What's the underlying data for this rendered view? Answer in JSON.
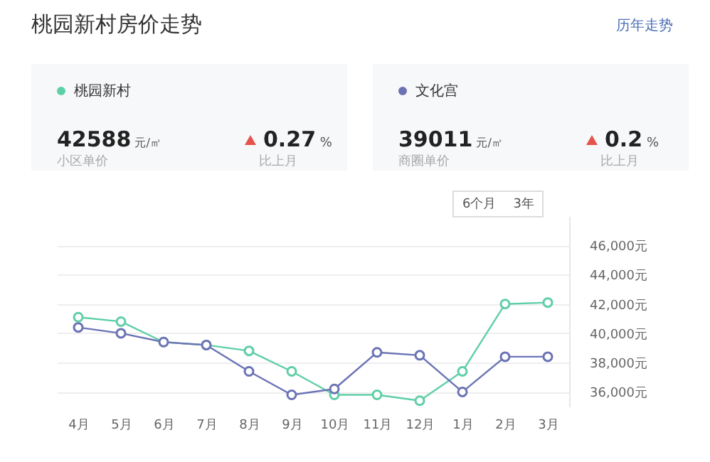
{
  "chart_data": {
    "type": "line",
    "title": "桃园新村房价走势",
    "annotations": [
      "历年走势",
      "42588 元/㎡",
      "小区单价",
      "0.27 %",
      "比上月",
      "39011 元/㎡",
      "商圈单价",
      "0.2 %",
      "比上月",
      "6个月",
      "3年"
    ],
    "categories": [
      "4月",
      "5月",
      "6月",
      "7月",
      "8月",
      "9月",
      "10月",
      "11月",
      "12月",
      "1月",
      "2月",
      "3月"
    ],
    "series": [
      {
        "name": "桃园新村",
        "color": "#5fcfa6",
        "values": [
          41100,
          40800,
          39400,
          39200,
          38800,
          37400,
          35800,
          35800,
          35400,
          37400,
          42000,
          42100
        ]
      },
      {
        "name": "文化宫",
        "color": "#6b73b5",
        "values": [
          40400,
          40000,
          39400,
          39200,
          37400,
          35800,
          36200,
          38700,
          38500,
          36000,
          38400,
          38400
        ]
      }
    ],
    "ylim": [
      35000,
      48000
    ],
    "yticks": [
      {
        "value": 36000,
        "label": "36,000元"
      },
      {
        "value": 38000,
        "label": "38,000元"
      },
      {
        "value": 40000,
        "label": "40,000元"
      },
      {
        "value": 42000,
        "label": "42,000元"
      },
      {
        "value": 44000,
        "label": "44,000元"
      },
      {
        "value": 46000,
        "label": "46,000元"
      }
    ],
    "grid": "y",
    "legend": "top",
    "marker": "circle",
    "line_style": "solid"
  }
}
